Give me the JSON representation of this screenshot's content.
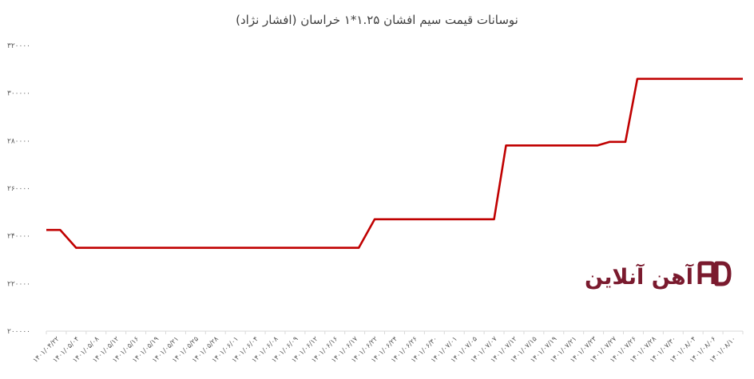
{
  "chart_data": {
    "type": "line",
    "title": "نوسانات قیمت سیم افشان ۱.۲۵*۱ خراسان (افشار نژاد)",
    "ylim": [
      200000,
      320000
    ],
    "y_ticks": [
      "۲۰۰۰۰۰",
      "۲۲۰۰۰۰",
      "۲۴۰۰۰۰",
      "۲۶۰۰۰۰",
      "۲۸۰۰۰۰",
      "۳۰۰۰۰۰",
      "۳۲۰۰۰۰"
    ],
    "x_tick_labels": [
      "۱۴۰۱/۰۴/۲۲",
      "۱۴۰۱/۰۵/۰۴",
      "۱۴۰۱/۰۵/۰۸",
      "۱۴۰۱/۰۵/۱۲",
      "۱۴۰۱/۰۵/۱۶",
      "۱۴۰۱/۰۵/۱۹",
      "۱۴۰۱/۰۵/۲۱",
      "۱۴۰۱/۰۵/۲۵",
      "۱۴۰۱/۰۵/۲۸",
      "۱۴۰۱/۰۶/۰۱",
      "۱۴۰۱/۰۶/۰۴",
      "۱۴۰۱/۰۶/۰۸",
      "۱۴۰۱/۰۶/۰۹",
      "۱۴۰۱/۰۶/۱۲",
      "۱۴۰۱/۰۶/۱۶",
      "۱۴۰۱/۰۶/۱۷",
      "۱۴۰۱/۰۶/۲۲",
      "۱۴۰۱/۰۶/۲۴",
      "۱۴۰۱/۰۶/۲۶",
      "۱۴۰۱/۰۶/۳۰",
      "۱۴۰۱/۰۷/۰۱",
      "۱۴۰۱/۰۷/۰۵",
      "۱۴۰۱/۰۷/۰۷",
      "۱۴۰۱/۰۷/۱۲",
      "۱۴۰۱/۰۷/۱۵",
      "۱۴۰۱/۰۷/۱۹",
      "۱۴۰۱/۰۷/۲۱",
      "۱۴۰۱/۰۷/۲۳",
      "۱۴۰۱/۰۷/۲۷",
      "۱۴۰۱/۰۷/۲۶",
      "۱۴۰۱/۰۷/۲۸",
      "۱۴۰۱/۰۷/۳۰",
      "۱۴۰۱/۰۸/۰۴",
      "۱۴۰۱/۰۸/۰۶",
      "۱۴۰۱/۰۸/۱۰"
    ],
    "series": [
      {
        "color": "#c00000",
        "x": [
          0,
          0.7,
          1.5,
          15.7,
          16.5,
          22.5,
          23.1,
          27.7,
          28.3,
          29.1,
          29.7,
          35
        ],
        "y": [
          242500,
          242500,
          235000,
          235000,
          247000,
          247000,
          278000,
          278000,
          279500,
          279500,
          306000,
          306000
        ]
      }
    ],
    "grid": false,
    "legend": "none"
  },
  "logo": {
    "text": "آهن آنلاین",
    "color": "#7a1a2e"
  }
}
